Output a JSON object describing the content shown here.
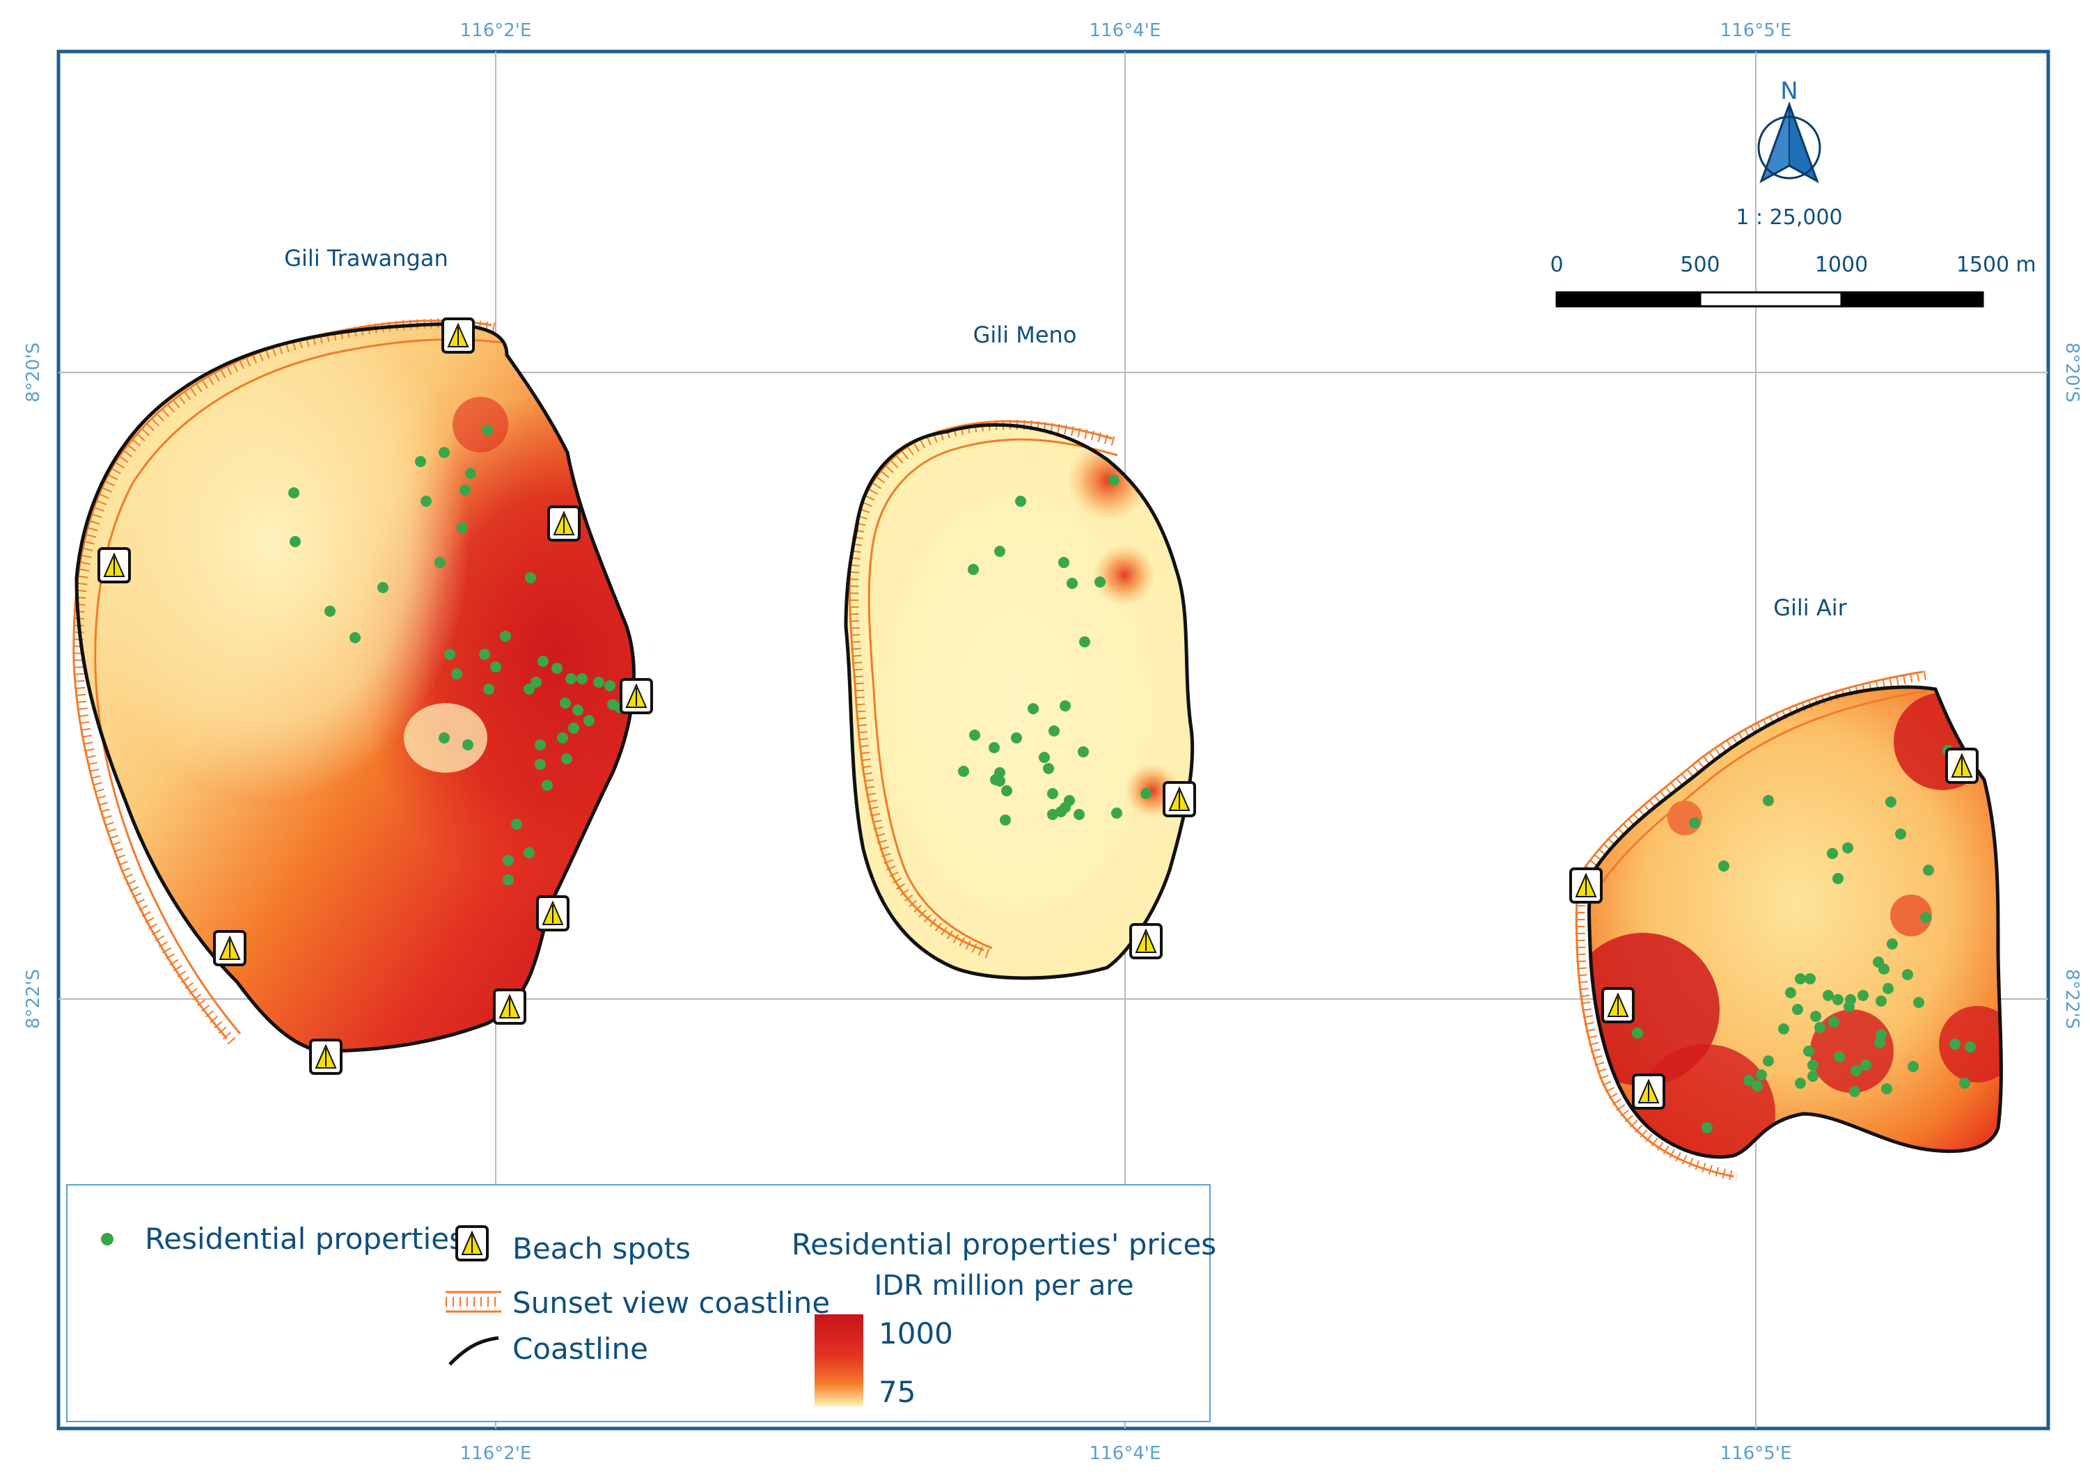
{
  "map": {
    "islands": [
      {
        "id": "trawangan",
        "label": "Gili Trawangan"
      },
      {
        "id": "meno",
        "label": "Gili Meno"
      },
      {
        "id": "air",
        "label": "Gili Air"
      }
    ],
    "longitude_ticks": [
      "116°2'E",
      "116°4'E",
      "116°5'E"
    ],
    "latitude_ticks": [
      "8°20'S",
      "8°22'S"
    ],
    "scale": {
      "ratio": "1 : 25,000",
      "labels": [
        "0",
        "500",
        "1000",
        "1500"
      ],
      "unit": "m"
    },
    "north_arrow": {
      "letter": "N",
      "icon": "north-arrow-icon"
    },
    "legend": {
      "residential_label": "Residential properties",
      "beach_label": "Beach spots",
      "sunset_label": "Sunset view coastline",
      "coastline_label": "Coastline",
      "price_title": "Residential properties' prices",
      "price_unit": "IDR million per are",
      "price_max": "1000",
      "price_min": "75"
    },
    "colors": {
      "high_price": "#d7191c",
      "mid_price": "#f47a2a",
      "low_price": "#fff2b0",
      "residential_dot": "#3aa64a",
      "sunset_line": "#f47a2a",
      "coastline": "#111111",
      "frame": "#1f5d8f",
      "grid": "#b0b0b0"
    }
  }
}
